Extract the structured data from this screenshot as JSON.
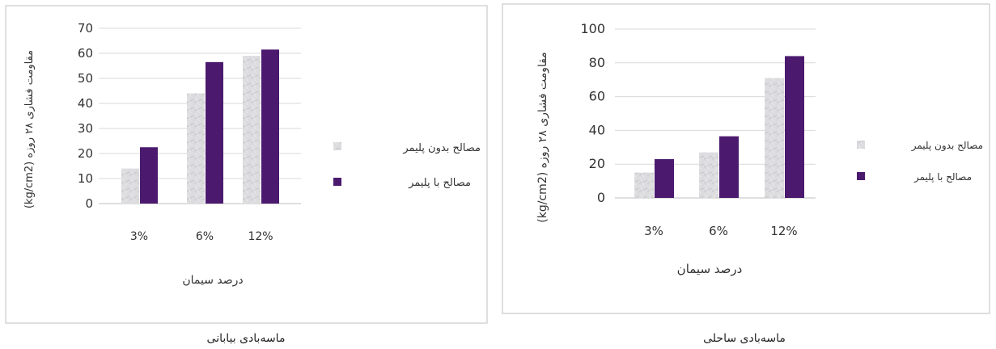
{
  "colors": {
    "without_polymer": "#d9d9dc",
    "with_polymer": "#4b1a6e",
    "frame": "#bfbfbf",
    "grid": "#d9d9d9",
    "text": "#333333"
  },
  "legend": {
    "without_polymer": "مصالح بدون پلیمر",
    "with_polymer": "مصالح با پلیمر"
  },
  "chart_data": [
    {
      "type": "bar",
      "title": "",
      "caption": "ماسه‌بادی بیابانی",
      "categories": [
        "3%",
        "6%",
        "12%"
      ],
      "xlabel": "درصد سیمان",
      "ylabel": "(kg/cm2) مقاومت فشاری ۲۸ روزه",
      "ylim": [
        0,
        70
      ],
      "yticks": [
        "0",
        "10",
        "20",
        "30",
        "40",
        "50",
        "60",
        "70"
      ],
      "grid": true,
      "legend_position": "right",
      "series": [
        {
          "name": "مصالح بدون پلیمر",
          "values": [
            14,
            44,
            59
          ]
        },
        {
          "name": "مصالح با پلیمر",
          "values": [
            22.5,
            56.5,
            61.5
          ]
        }
      ]
    },
    {
      "type": "bar",
      "title": "",
      "caption": "ماسه‌بادی ساحلی",
      "categories": [
        "3%",
        "6%",
        "12%"
      ],
      "xlabel": "درصد سیمان",
      "ylabel": "(kg/cm2) مقاومت فشاری ۲۸ روزه",
      "ylim": [
        0,
        100
      ],
      "yticks": [
        "0",
        "20",
        "40",
        "60",
        "80",
        "100"
      ],
      "grid": true,
      "legend_position": "right",
      "series": [
        {
          "name": "مصالح بدون پلیمر",
          "values": [
            15,
            27,
            71
          ]
        },
        {
          "name": "مصالح با پلیمر",
          "values": [
            23,
            36.5,
            84
          ]
        }
      ]
    }
  ]
}
